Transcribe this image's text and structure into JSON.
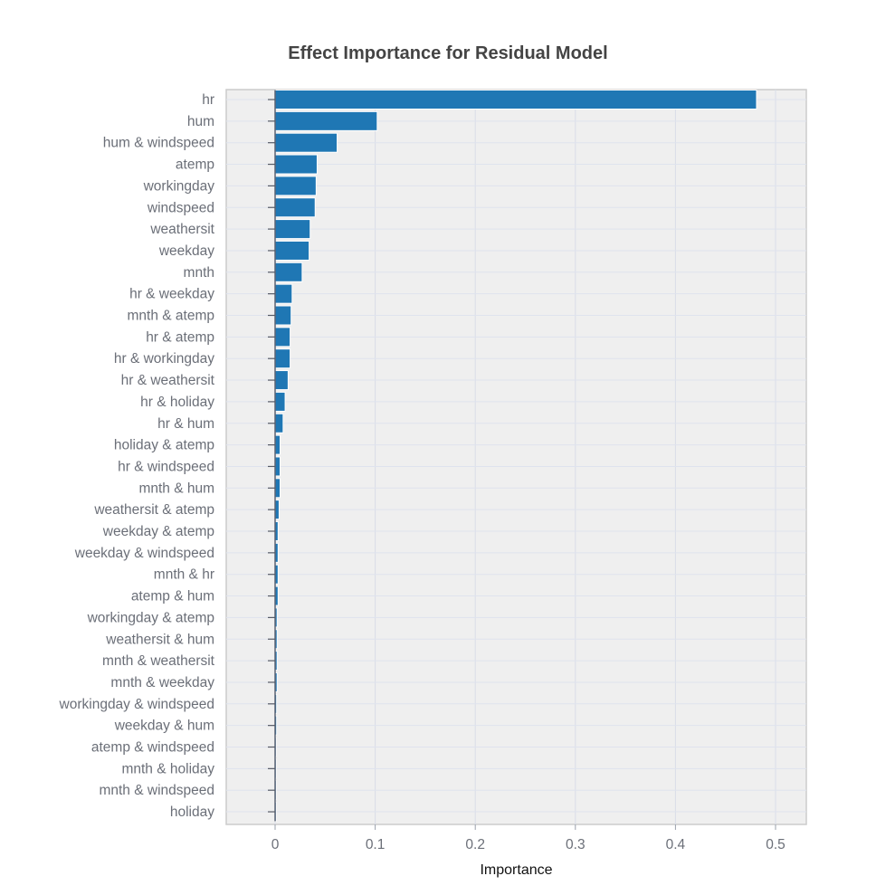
{
  "chart_data": {
    "type": "bar",
    "orientation": "horizontal",
    "title": "Effect Importance for Residual Model",
    "xlabel": "Importance",
    "ylabel": "",
    "xlim": [
      -0.05,
      0.53
    ],
    "xticks": [
      0,
      0.1,
      0.2,
      0.3,
      0.4,
      0.5
    ],
    "xtick_labels": [
      "0",
      "0.1",
      "0.2",
      "0.3",
      "0.4",
      "0.5"
    ],
    "grid": true,
    "bar_color": "#1f77b4",
    "background_color": "#efefef",
    "categories": [
      "hr",
      "hum",
      "hum & windspeed",
      "atemp",
      "workingday",
      "windspeed",
      "weathersit",
      "weekday",
      "mnth",
      "hr & weekday",
      "mnth & atemp",
      "hr & atemp",
      "hr & workingday",
      "hr & weathersit",
      "hr & holiday",
      "hr & hum",
      "holiday & atemp",
      "hr & windspeed",
      "mnth & hum",
      "weathersit & atemp",
      "weekday & atemp",
      "weekday & windspeed",
      "mnth & hr",
      "atemp & hum",
      "workingday & atemp",
      "weathersit & hum",
      "mnth & weathersit",
      "mnth & weekday",
      "workingday & windspeed",
      "weekday & hum",
      "atemp & windspeed",
      "mnth & holiday",
      "mnth & windspeed",
      "holiday"
    ],
    "values": [
      0.481,
      0.102,
      0.062,
      0.042,
      0.041,
      0.04,
      0.035,
      0.034,
      0.027,
      0.017,
      0.016,
      0.015,
      0.015,
      0.013,
      0.01,
      0.008,
      0.005,
      0.005,
      0.005,
      0.004,
      0.003,
      0.003,
      0.003,
      0.003,
      0.002,
      0.002,
      0.002,
      0.002,
      0.0015,
      0.0015,
      0.001,
      0.001,
      0.001,
      0.0005
    ]
  }
}
